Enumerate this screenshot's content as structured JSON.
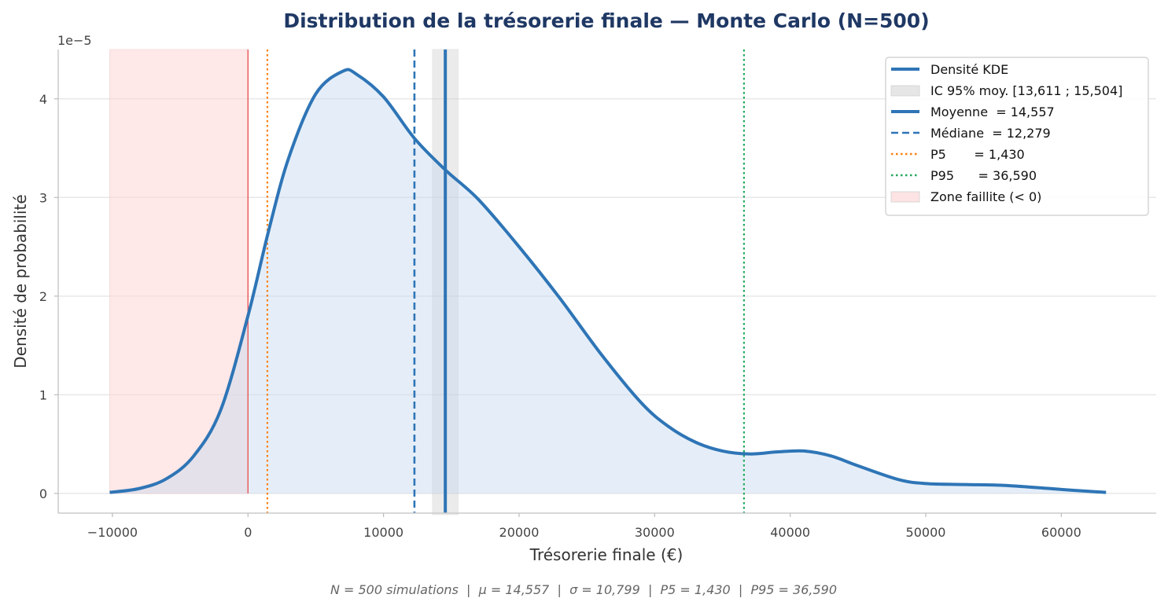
{
  "chart_data": {
    "type": "area",
    "title": "Distribution de la trésorerie finale — Monte Carlo (N=500)",
    "xlabel": "Trésorerie finale (€)",
    "ylabel": "Densité de probabilité",
    "y_scale_label": "1e−5",
    "xlim": [
      -14000,
      67000
    ],
    "ylim": [
      -0.2,
      4.5
    ],
    "x_ticks": [
      -10000,
      0,
      10000,
      20000,
      30000,
      40000,
      50000,
      60000
    ],
    "x_tick_labels": [
      "−10000",
      "0",
      "10000",
      "20000",
      "30000",
      "40000",
      "50000",
      "60000"
    ],
    "y_ticks": [
      0,
      1,
      2,
      3,
      4
    ],
    "y_tick_labels": [
      "0",
      "1",
      "2",
      "3",
      "4"
    ],
    "grid": "horizontal",
    "legend_position": "top-right",
    "series": [
      {
        "name": "Densité KDE",
        "color": "#2e75b6",
        "x": [
          -10200,
          -8000,
          -6000,
          -4000,
          -2000,
          0,
          1500,
          3000,
          5000,
          7000,
          8000,
          10000,
          12279,
          14557,
          17000,
          20000,
          23000,
          26000,
          29000,
          31000,
          33000,
          35000,
          37000,
          39000,
          41000,
          43000,
          45000,
          48000,
          50000,
          53000,
          56000,
          60000,
          63300
        ],
        "y": [
          0.01,
          0.05,
          0.15,
          0.38,
          0.85,
          1.8,
          2.65,
          3.4,
          4.05,
          4.28,
          4.25,
          4.02,
          3.6,
          3.28,
          2.98,
          2.5,
          1.98,
          1.42,
          0.92,
          0.68,
          0.52,
          0.43,
          0.4,
          0.42,
          0.43,
          0.38,
          0.28,
          0.14,
          0.1,
          0.09,
          0.08,
          0.04,
          0.01
        ]
      }
    ],
    "reference_lines": [
      {
        "name": "Moyenne  = 14,557",
        "x": 14557,
        "style": "solid",
        "color": "#2e75b6"
      },
      {
        "name": "Médiane  = 12,279",
        "x": 12279,
        "style": "dashed",
        "color": "#2e75b6"
      },
      {
        "name": "P5       = 1,430",
        "x": 1430,
        "style": "dotted",
        "color": "#ff7f0e"
      },
      {
        "name": "P95      = 36,590",
        "x": 36590,
        "style": "dotted",
        "color": "#22a85a"
      }
    ],
    "shaded_regions": [
      {
        "name": "IC 95% moy. [13,611 ; 15,504]",
        "x_range": [
          13611,
          15504
        ],
        "color": "#c8c8c8"
      },
      {
        "name": "Zone faillite (< 0)",
        "x_range": [
          -10200,
          0
        ],
        "color": "#ffd6d6"
      }
    ],
    "zero_line": {
      "x": 0,
      "color": "#e84c4c"
    },
    "legend_entries": [
      {
        "label": "Densité KDE",
        "kind": "line",
        "style": "solid",
        "color": "#2e75b6"
      },
      {
        "label": "IC 95% moy. [13,611 ; 15,504]",
        "kind": "patch",
        "color": "#e6e6e6"
      },
      {
        "label": "Moyenne  = 14,557",
        "kind": "line",
        "style": "solid",
        "color": "#2e75b6"
      },
      {
        "label": "Médiane  = 12,279",
        "kind": "line",
        "style": "dashed",
        "color": "#2e75b6"
      },
      {
        "label": "P5       = 1,430",
        "kind": "line",
        "style": "dotted",
        "color": "#ff7f0e"
      },
      {
        "label": "P95      = 36,590",
        "kind": "line",
        "style": "dotted",
        "color": "#22a85a"
      },
      {
        "label": "Zone faillite (< 0)",
        "kind": "patch",
        "color": "#fde3e3"
      }
    ],
    "footnote": "N = 500 simulations  |  μ = 14,557  |  σ = 10,799  |  P5 = 1,430  |  P95 = 36,590"
  }
}
